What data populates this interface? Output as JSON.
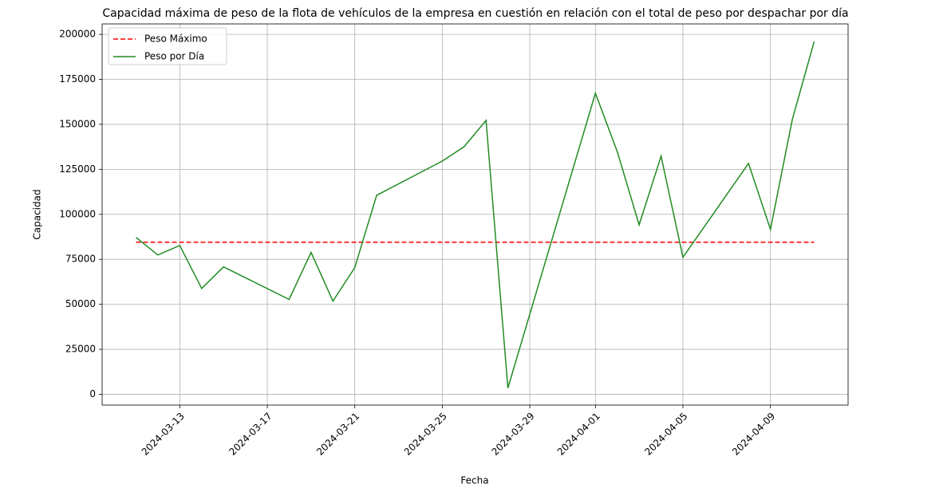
{
  "chart_data": {
    "type": "line",
    "title": "Capacidad máxima de peso de la flota de vehículos de la empresa en cuestión en relación con el total de peso por despachar por día",
    "x_label": "Fecha",
    "y_label": "Capacidad",
    "x": [
      "2024-03-11",
      "2024-03-12",
      "2024-03-13",
      "2024-03-14",
      "2024-03-15",
      "2024-03-18",
      "2024-03-19",
      "2024-03-20",
      "2024-03-21",
      "2024-03-22",
      "2024-03-25",
      "2024-03-26",
      "2024-03-27",
      "2024-03-28",
      "2024-04-01",
      "2024-04-02",
      "2024-04-03",
      "2024-04-04",
      "2024-04-05",
      "2024-04-08",
      "2024-04-09",
      "2024-04-10",
      "2024-04-11"
    ],
    "series": [
      {
        "name": "Peso Máximo",
        "color": "#ff0000",
        "dashed": true,
        "values": [
          84500,
          84500,
          84500,
          84500,
          84500,
          84500,
          84500,
          84500,
          84500,
          84500,
          84500,
          84500,
          84500,
          84500,
          84500,
          84500,
          84500,
          84500,
          84500,
          84500,
          84500,
          84500,
          84500
        ]
      },
      {
        "name": "Peso por Día",
        "color": "#228b22",
        "dashed": false,
        "values": [
          87200,
          77400,
          82700,
          58800,
          70800,
          52700,
          78800,
          51800,
          70400,
          110600,
          129600,
          137600,
          152200,
          3500,
          167300,
          134800,
          94200,
          132300,
          76100,
          128300,
          91600,
          152700,
          196000
        ]
      }
    ],
    "xlim": [
      "2024-03-09T10:48",
      "2024-04-12T13:12"
    ],
    "xticks": [
      "2024-03-13",
      "2024-03-17",
      "2024-03-21",
      "2024-03-25",
      "2024-03-29",
      "2024-04-01",
      "2024-04-05",
      "2024-04-09"
    ],
    "ylim": [
      -6000,
      205800
    ],
    "yticks": [
      0,
      25000,
      50000,
      75000,
      100000,
      125000,
      150000,
      175000,
      200000
    ],
    "grid": true,
    "legend": "upper left"
  }
}
